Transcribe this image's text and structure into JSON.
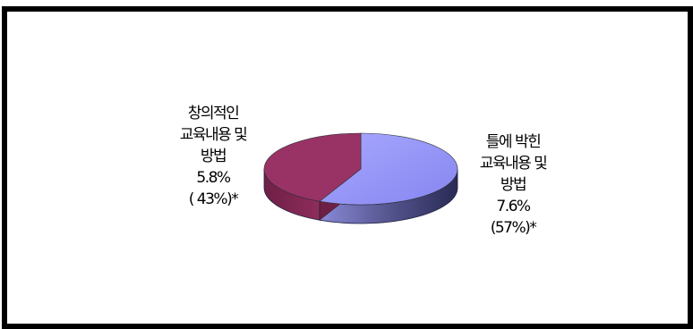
{
  "chart_data": {
    "type": "pie",
    "title": "",
    "slices": [
      {
        "lines": [
          "틀에 박힌",
          "교육내용 및",
          "방법"
        ],
        "value_label": "7.6%",
        "share_label": "(57%)*",
        "value": 7.6,
        "share": 57,
        "color": "#9999ff"
      },
      {
        "lines": [
          "창의적인",
          "교육내용 및",
          "방법"
        ],
        "value_label": "5.8%",
        "share_label": "( 43%)*",
        "value": 5.8,
        "share": 43,
        "color": "#993366"
      }
    ]
  }
}
